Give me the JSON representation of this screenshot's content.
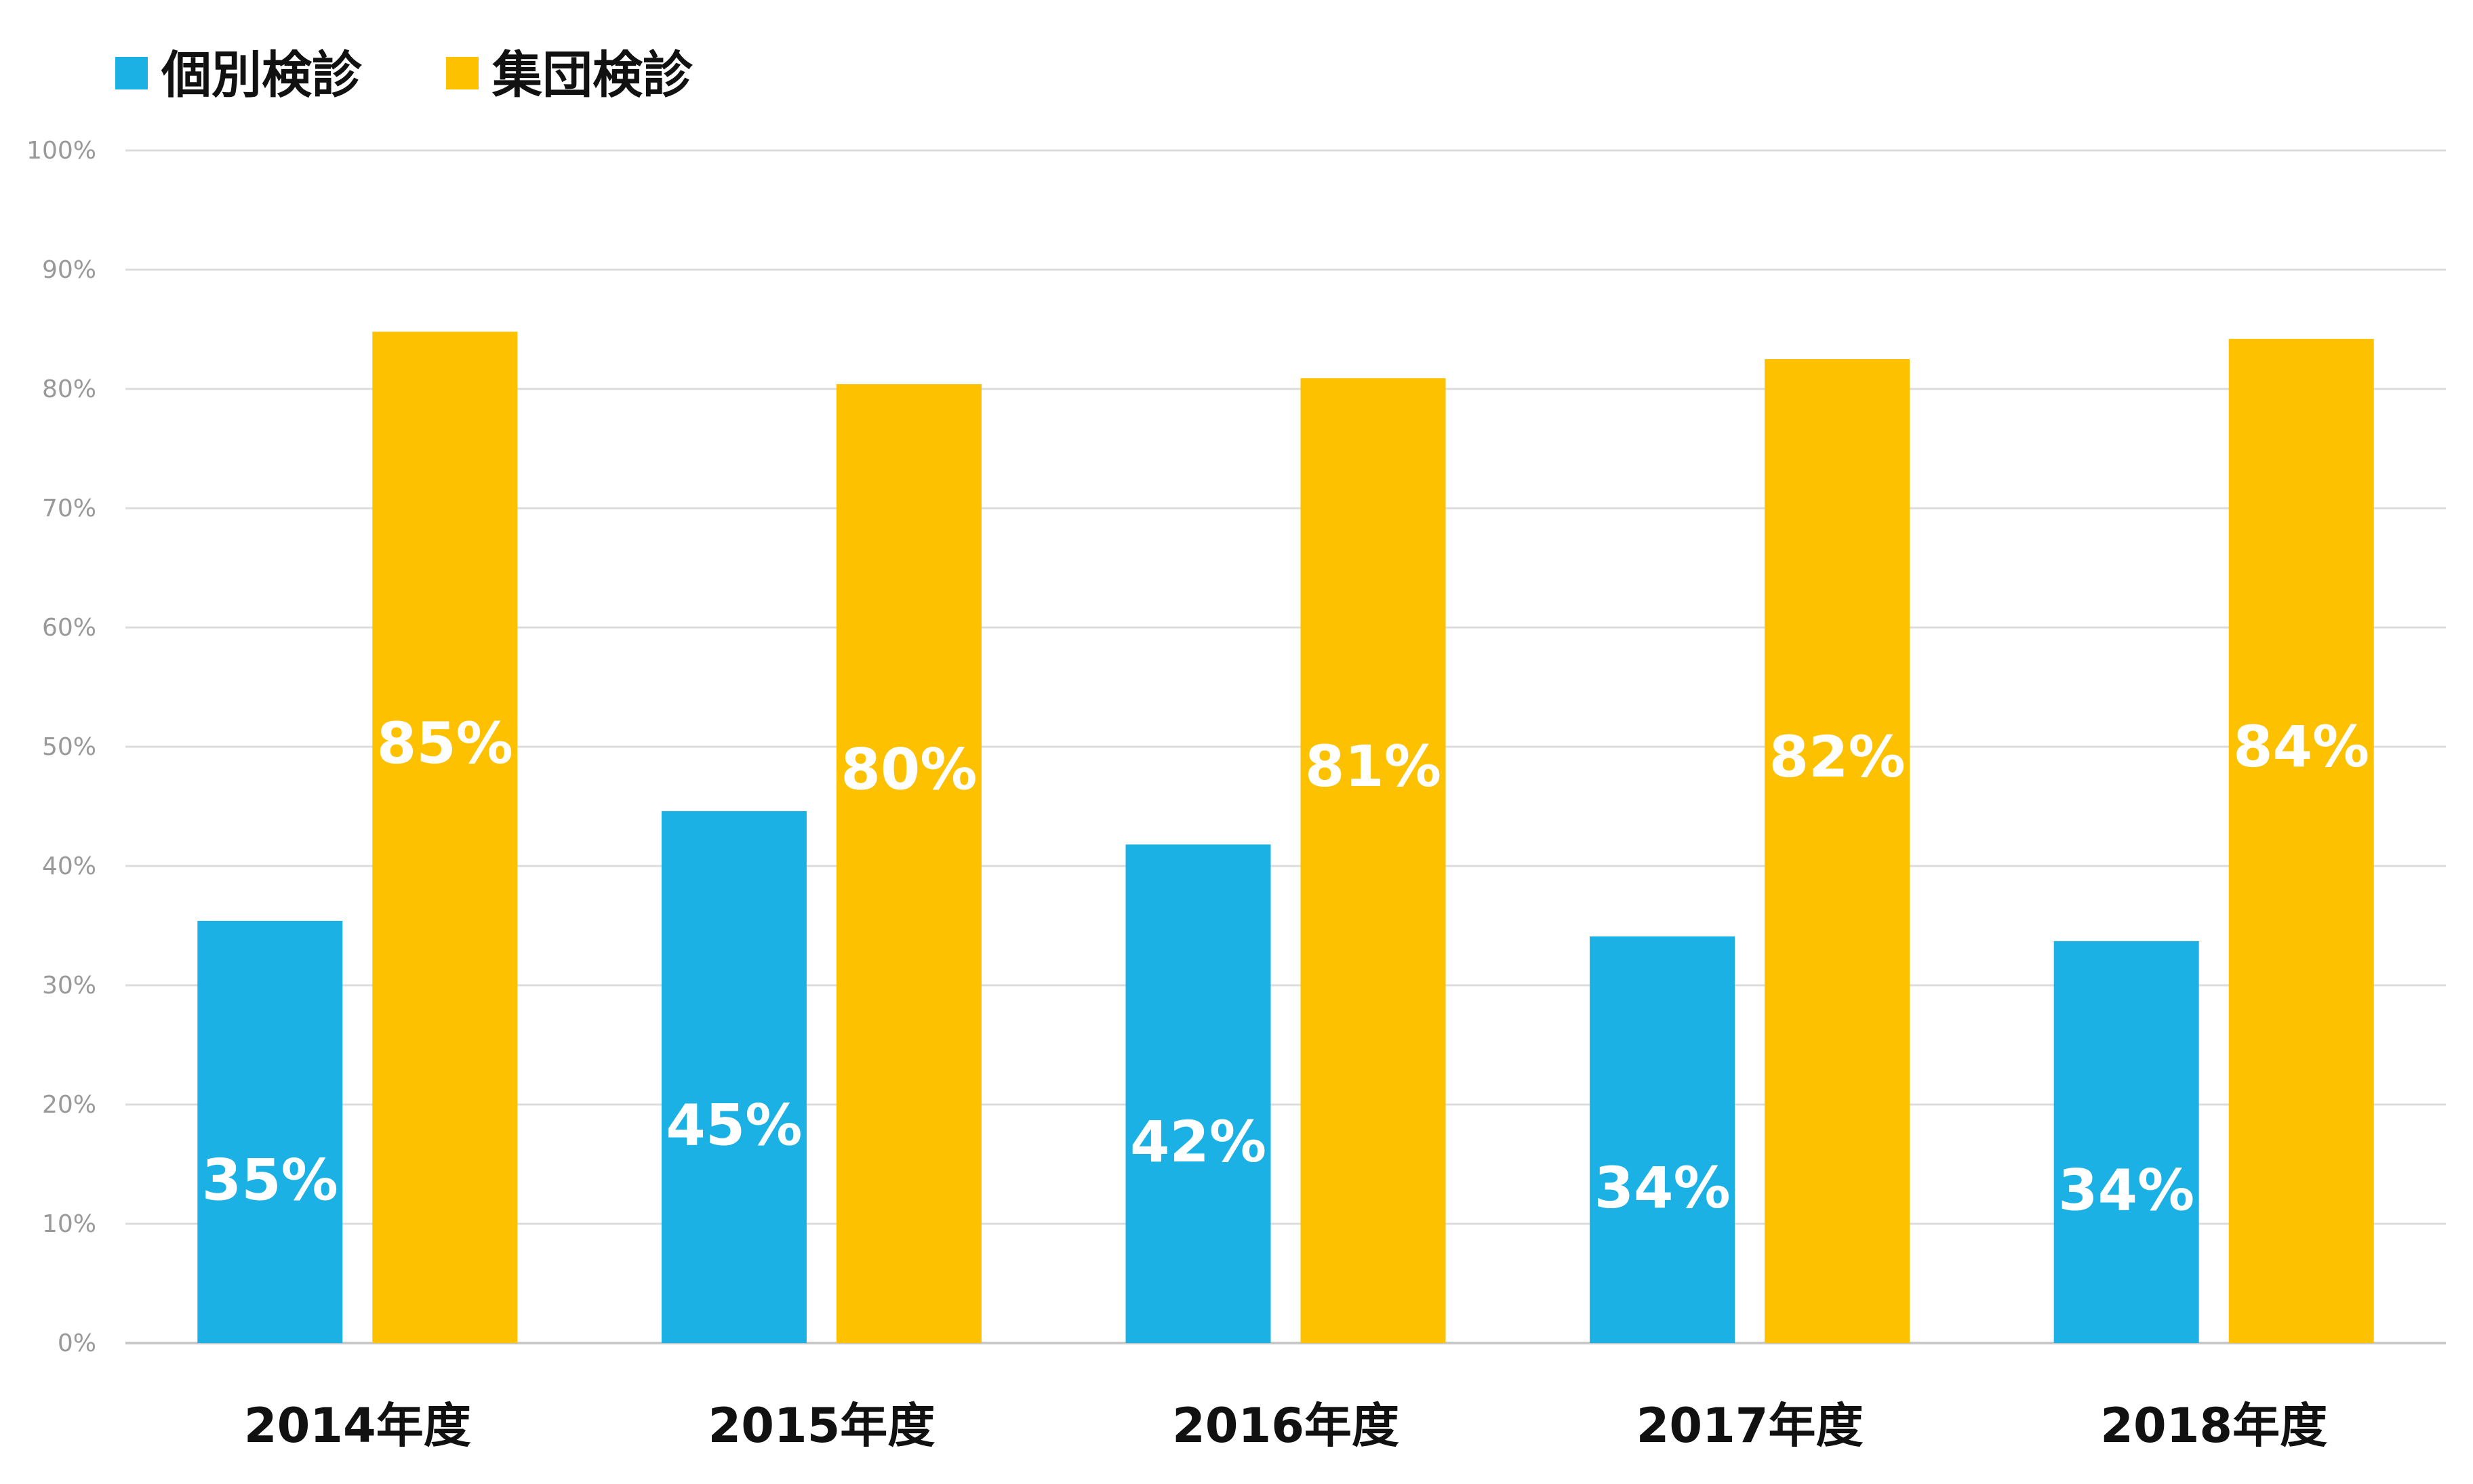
{
  "chart_data": {
    "type": "bar",
    "categories": [
      "2014年度",
      "2015年度",
      "2016年度",
      "2017年度",
      "2018年度"
    ],
    "series": [
      {
        "name": "個別検診",
        "values": [
          35,
          45,
          42,
          34,
          34
        ],
        "labels": [
          "35%",
          "45%",
          "42%",
          "34%",
          "34%"
        ]
      },
      {
        "name": "集団検診",
        "values": [
          85,
          80,
          81,
          82,
          84
        ],
        "labels": [
          "85%",
          "80%",
          "81%",
          "82%",
          "84%"
        ]
      }
    ],
    "plotted_values": [
      [
        35.4,
        44.6,
        41.8,
        34.1,
        33.7
      ],
      [
        84.8,
        80.4,
        80.9,
        82.5,
        84.2
      ]
    ],
    "ylim": [
      0,
      100
    ],
    "yticks": [
      0,
      10,
      20,
      30,
      40,
      50,
      60,
      70,
      80,
      90,
      100
    ],
    "ytick_labels": [
      "0%",
      "10%",
      "20%",
      "30%",
      "40%",
      "50%",
      "60%",
      "70%",
      "80%",
      "90%",
      "100%"
    ],
    "title": "",
    "xlabel": "",
    "ylabel": "",
    "grid": true,
    "legend_position": "top-left",
    "colors": [
      "#1BB1E4",
      "#FDC100"
    ]
  }
}
